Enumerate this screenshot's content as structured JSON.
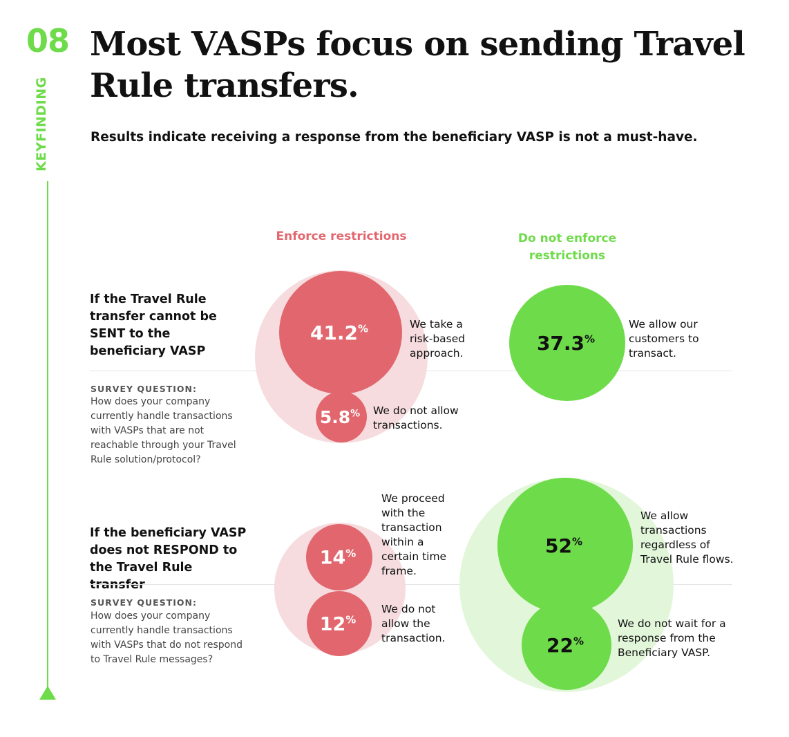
{
  "finding": {
    "number": "08",
    "label": "KEYFINDING"
  },
  "title": "Most VASPs focus on sending Travel Rule transfers.",
  "subtitle": "Results indicate receiving a response from the beneficiary VASP is not a must-have.",
  "colors": {
    "accent_green": "#6edb4a",
    "bubble_green": "#6edb4a",
    "halo_green": "#e2f7da",
    "bubble_red": "#e1666d",
    "halo_red": "#f6dcde",
    "text_red": "#e1666d",
    "text_green": "#6edb4a"
  },
  "columns": {
    "enforce": "Enforce restrictions",
    "not_enforce": "Do not enforce restrictions"
  },
  "rows": [
    {
      "heading": "If the Travel Rule transfer cannot be SENT to the beneficiary VASP",
      "survey_label": "SURVEY QUESTION:",
      "survey_question": "How does your company currently handle transactions with VASPs that are not reachable through your Travel Rule solution/protocol?"
    },
    {
      "heading": "If the beneficiary VASP does not RESPOND to the Travel Rule transfer",
      "survey_label": "SURVEY QUESTION:",
      "survey_question": "How does your company currently handle transactions with VASPs that do not respond to Travel Rule messages?"
    }
  ],
  "chart_data": {
    "type": "bubble",
    "unit": "%",
    "series": [
      {
        "name": "Enforce restrictions",
        "row": "If the Travel Rule transfer cannot be SENT to the beneficiary VASP",
        "points": [
          {
            "value": 41.2,
            "label": "41.2",
            "annotation": "We take a risk-based approach."
          },
          {
            "value": 5.8,
            "label": "5.8",
            "annotation": "We do not allow transactions."
          }
        ]
      },
      {
        "name": "Do not enforce restrictions",
        "row": "If the Travel Rule transfer cannot be SENT to the beneficiary VASP",
        "points": [
          {
            "value": 37.3,
            "label": "37.3",
            "annotation": "We allow our customers to transact."
          }
        ]
      },
      {
        "name": "Enforce restrictions",
        "row": "If the beneficiary VASP does not RESPOND to the Travel Rule transfer",
        "points": [
          {
            "value": 14,
            "label": "14",
            "annotation": "We proceed with the transaction within a certain time frame."
          },
          {
            "value": 12,
            "label": "12",
            "annotation": "We do not allow the transaction."
          }
        ]
      },
      {
        "name": "Do not enforce restrictions",
        "row": "If the beneficiary VASP does not RESPOND to the Travel Rule transfer",
        "points": [
          {
            "value": 52,
            "label": "52",
            "annotation": "We allow transactions regardless of Travel Rule flows."
          },
          {
            "value": 22,
            "label": "22",
            "annotation": "We do not wait for a response from the Beneficiary VASP."
          }
        ]
      }
    ]
  }
}
